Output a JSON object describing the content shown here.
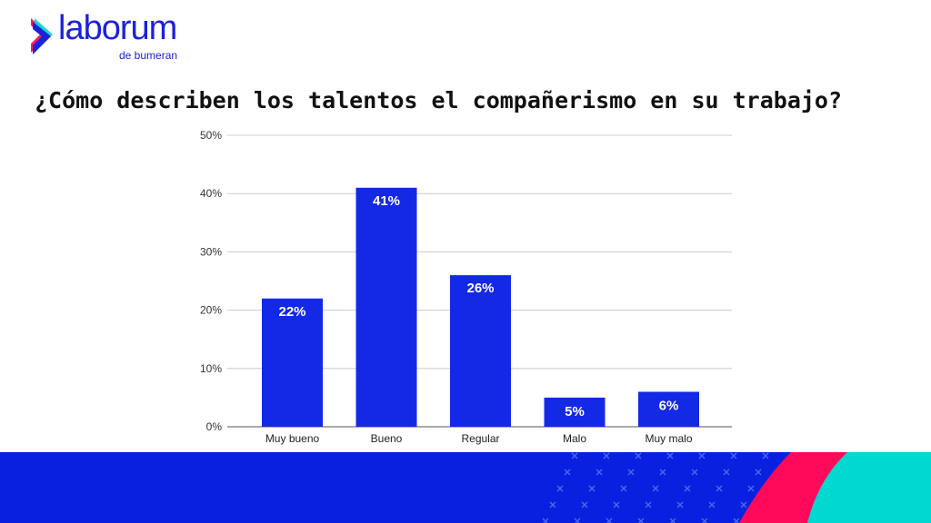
{
  "logo": {
    "word": "laborum",
    "sub": "de bumeran"
  },
  "title": "¿Cómo describen los talentos el compañerismo en su trabajo?",
  "colors": {
    "bar": "#1429e6",
    "grid": "#cccccc",
    "band_blue": "#0a20e0",
    "band_pink": "#ff0a5a",
    "band_teal": "#00d8d0"
  },
  "chart_data": {
    "type": "bar",
    "title": "¿Cómo describen los talentos el compañerismo en su trabajo?",
    "categories": [
      "Muy bueno",
      "Bueno",
      "Regular",
      "Malo",
      "Muy malo"
    ],
    "values": [
      22,
      41,
      26,
      5,
      6
    ],
    "data_labels": [
      "22%",
      "41%",
      "26%",
      "5%",
      "6%"
    ],
    "ylim": [
      0,
      50
    ],
    "yticks": [
      0,
      10,
      20,
      30,
      40,
      50
    ],
    "ytick_labels": [
      "0%",
      "10%",
      "20%",
      "30%",
      "40%",
      "50%"
    ],
    "xlabel": "",
    "ylabel": "",
    "grid": true,
    "legend": "none"
  }
}
